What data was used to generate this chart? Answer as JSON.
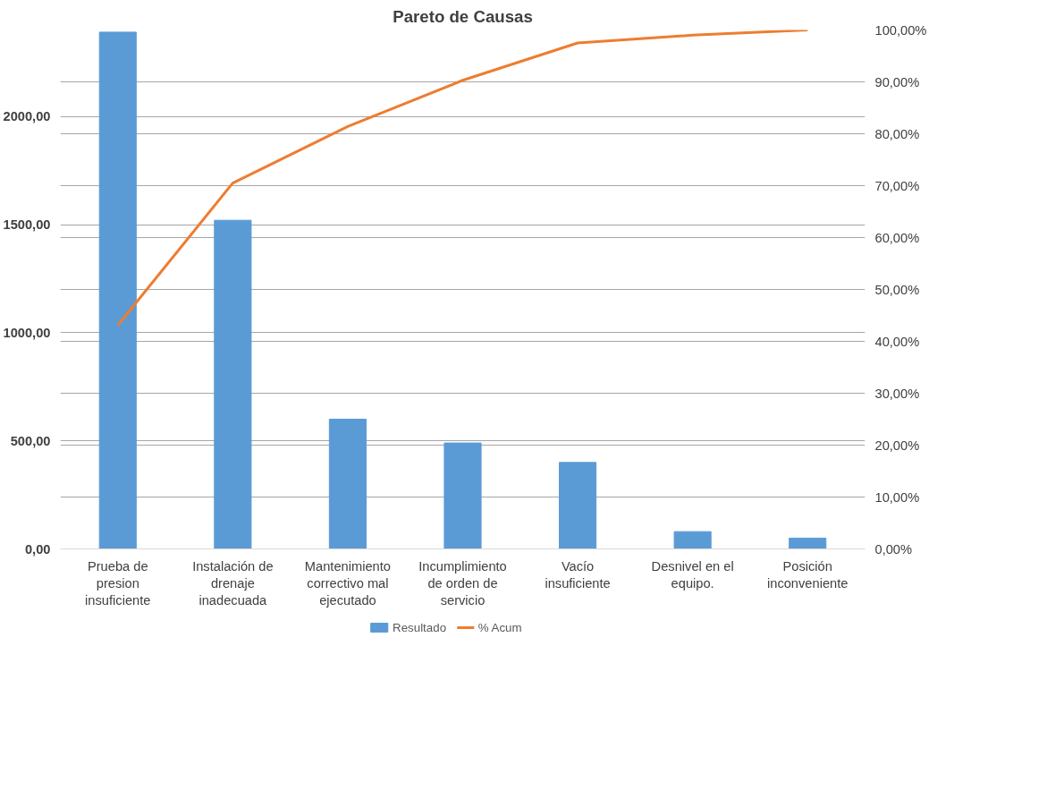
{
  "chart_data": {
    "type": "bar",
    "title": "Pareto de Causas",
    "categories": [
      "Prueba de presion insuficiente",
      "Instalación de drenaje inadecuada",
      "Mantenimiento correctivo mal ejecutado",
      "Incumplimiento de orden de servicio",
      "Vacío insuficiente",
      "Desnivel en el equipo.",
      "Posición inconveniente"
    ],
    "series": [
      {
        "name": "Resultado",
        "color": "#5b9bd5",
        "values": [
          2390,
          1520,
          600,
          490,
          400,
          80,
          50
        ]
      },
      {
        "name": "% Acum",
        "type": "line",
        "axis": "y2",
        "color": "#ed7d31",
        "values": [
          43.1,
          70.5,
          81.4,
          90.3,
          97.5,
          99.0,
          100
        ]
      }
    ],
    "ylim": [
      0,
      2400
    ],
    "yticks": [
      {
        "value": 0,
        "label": "0,00"
      },
      {
        "value": 500,
        "label": "500,00"
      },
      {
        "value": 1000,
        "label": "1000,00"
      },
      {
        "value": 1500,
        "label": "1500,00"
      },
      {
        "value": 2000,
        "label": "2000,00"
      }
    ],
    "y2lim": [
      0,
      100
    ],
    "y2ticks": [
      {
        "value": 0,
        "label": "0,00%"
      },
      {
        "value": 10,
        "label": "10,00%"
      },
      {
        "value": 20,
        "label": "20,00%"
      },
      {
        "value": 30,
        "label": "30,00%"
      },
      {
        "value": 40,
        "label": "40,00%"
      },
      {
        "value": 50,
        "label": "50,00%"
      },
      {
        "value": 60,
        "label": "60,00%"
      },
      {
        "value": 70,
        "label": "70,00%"
      },
      {
        "value": 80,
        "label": "80,00%"
      },
      {
        "value": 90,
        "label": "90,00%"
      },
      {
        "value": 100,
        "label": "100,00%"
      }
    ],
    "grid": true,
    "legend": "bottom",
    "marker": "none",
    "line_style": "solid"
  }
}
